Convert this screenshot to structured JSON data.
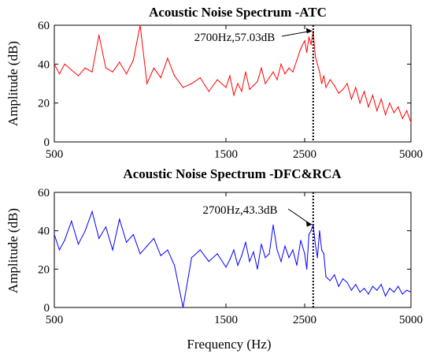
{
  "chart_data": [
    {
      "type": "line",
      "title": "Acoustic Noise Spectrum -ATC",
      "xlabel": "",
      "ylabel": "Amplitude (dB)",
      "xlim": [
        500,
        5000
      ],
      "ylim": [
        0,
        60
      ],
      "xticks": [
        "500",
        "1500",
        "2500",
        "5000"
      ],
      "yticks": [
        "0",
        "20",
        "40",
        "60"
      ],
      "color": "#ff0000",
      "grid": false,
      "annotation": {
        "text": "2700Hz,57.03dB",
        "x": 2700,
        "y": 57.03
      },
      "x": [
        500,
        530,
        560,
        600,
        640,
        680,
        720,
        760,
        800,
        840,
        880,
        920,
        960,
        1000,
        1040,
        1080,
        1120,
        1160,
        1200,
        1250,
        1300,
        1350,
        1400,
        1450,
        1500,
        1550,
        1600,
        1650,
        1700,
        1750,
        1800,
        1850,
        1900,
        1950,
        2000,
        2050,
        2100,
        2150,
        2200,
        2250,
        2300,
        2350,
        2400,
        2450,
        2500,
        2550,
        2600,
        2650,
        2700,
        2750,
        2800,
        2850,
        2900,
        2950,
        3000,
        3100,
        3200,
        3300,
        3400,
        3500,
        3600,
        3700,
        3800,
        3900,
        4000,
        4100,
        4200,
        4300,
        4400,
        4500,
        4600,
        4700,
        4800,
        4900,
        5000
      ],
      "values": [
        40,
        35,
        40,
        37,
        34,
        38,
        36,
        55,
        38,
        36,
        41,
        35,
        42,
        60,
        30,
        38,
        33,
        43,
        34,
        28,
        30,
        33,
        26,
        32,
        28,
        34,
        24,
        30,
        26,
        36,
        27,
        29,
        31,
        38,
        30,
        33,
        36,
        32,
        40,
        35,
        38,
        36,
        42,
        48,
        52,
        46,
        54,
        50,
        57.03,
        44,
        40,
        36,
        30,
        34,
        28,
        32,
        29,
        25,
        27,
        30,
        22,
        28,
        20,
        26,
        18,
        24,
        16,
        22,
        14,
        20,
        15,
        18,
        12,
        16,
        10
      ]
    },
    {
      "type": "line",
      "title": "Acoustic Noise Spectrum -DFC&RCA",
      "xlabel": "Frequency (Hz)",
      "ylabel": "Amplitude (dB)",
      "xlim": [
        500,
        5000
      ],
      "ylim": [
        0,
        60
      ],
      "xticks": [
        "500",
        "1500",
        "2500",
        "5000"
      ],
      "yticks": [
        "0",
        "20",
        "40",
        "60"
      ],
      "color": "#0000ff",
      "grid": false,
      "annotation": {
        "text": "2700Hz,43.3dB",
        "x": 2700,
        "y": 43.3
      },
      "x": [
        500,
        530,
        560,
        600,
        640,
        680,
        720,
        760,
        800,
        840,
        880,
        920,
        960,
        1000,
        1040,
        1080,
        1120,
        1160,
        1200,
        1250,
        1300,
        1350,
        1400,
        1450,
        1500,
        1550,
        1600,
        1650,
        1700,
        1750,
        1800,
        1850,
        1900,
        1950,
        2000,
        2050,
        2100,
        2150,
        2200,
        2250,
        2300,
        2350,
        2400,
        2450,
        2500,
        2550,
        2600,
        2650,
        2700,
        2750,
        2800,
        2850,
        2900,
        2950,
        3000,
        3100,
        3200,
        3300,
        3400,
        3500,
        3600,
        3700,
        3800,
        3900,
        4000,
        4100,
        4200,
        4300,
        4400,
        4500,
        4600,
        4700,
        4800,
        4900,
        5000
      ],
      "values": [
        38,
        30,
        35,
        45,
        33,
        40,
        50,
        36,
        42,
        30,
        46,
        34,
        38,
        28,
        32,
        36,
        27,
        30,
        22,
        0,
        26,
        30,
        24,
        28,
        21,
        25,
        30,
        22,
        27,
        34,
        24,
        29,
        20,
        33,
        26,
        28,
        43,
        30,
        24,
        32,
        26,
        30,
        22,
        35,
        28,
        20,
        38,
        40,
        43.3,
        33,
        26,
        40,
        30,
        28,
        16,
        14,
        17,
        11,
        15,
        13,
        9,
        12,
        8,
        10,
        7,
        11,
        9,
        12,
        6,
        10,
        8,
        11,
        7,
        9,
        8
      ]
    }
  ]
}
